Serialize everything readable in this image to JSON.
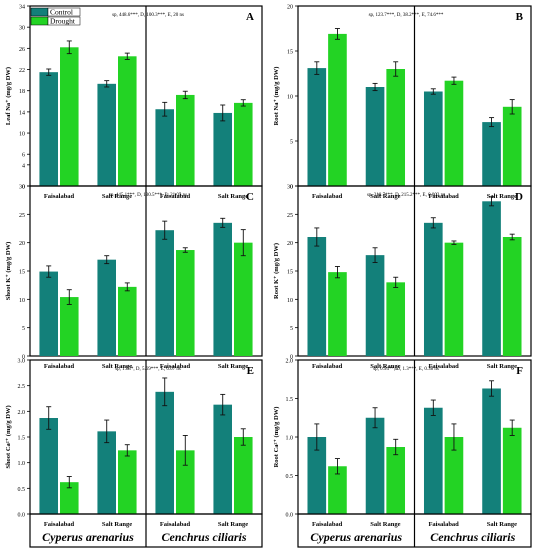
{
  "legend": {
    "items": [
      {
        "name": "Control",
        "color": "#13807a"
      },
      {
        "name": "Drought",
        "color": "#23d324"
      }
    ]
  },
  "species_labels": [
    "Cyperus arenarius",
    "Cenchrus ciliaris"
  ],
  "categories": [
    "Faisalabad",
    "Salt Range",
    "Faisalabad",
    "Salt Range"
  ],
  "chart_data": [
    {
      "type": "bar",
      "panel": "A",
      "stats": "sp, 448.6***, D, 100.3***, E, 20 ns",
      "ylabel": "Leaf Na⁺ (mg/g DW)",
      "ylim": [
        0,
        34
      ],
      "yticks": [
        0,
        4,
        6,
        10,
        14,
        18,
        22,
        26,
        30,
        34
      ],
      "categories": [
        "Faisalabad",
        "Salt Range",
        "Faisalabad",
        "Salt Range"
      ],
      "series": [
        {
          "name": "Control",
          "values": [
            21.5,
            19.3,
            14.5,
            13.8
          ],
          "errors": [
            0.6,
            0.6,
            1.3,
            1.5
          ]
        },
        {
          "name": "Drought",
          "values": [
            26.2,
            24.5,
            17.2,
            15.7
          ],
          "errors": [
            1.2,
            0.6,
            0.7,
            0.6
          ]
        }
      ]
    },
    {
      "type": "bar",
      "panel": "B",
      "stats": "sp, 123.7***, D, 38.2***, E, 74.6***",
      "ylabel": "Root Na⁺ (mg/g DW)",
      "ylim": [
        0,
        20
      ],
      "yticks": [
        0,
        5,
        10,
        15,
        20
      ],
      "categories": [
        "Faisalabad",
        "Salt Range",
        "Faisalabad",
        "Salt Range"
      ],
      "series": [
        {
          "name": "Control",
          "values": [
            13.1,
            11.0,
            10.5,
            7.1
          ],
          "errors": [
            0.7,
            0.4,
            0.3,
            0.5
          ]
        },
        {
          "name": "Drought",
          "values": [
            16.9,
            13.0,
            11.7,
            8.8
          ],
          "errors": [
            0.6,
            0.8,
            0.4,
            0.8
          ]
        }
      ]
    },
    {
      "type": "bar",
      "panel": "C",
      "stats": "sp, 445.1***, D, 130.5***, E, 21.05 ns",
      "ylabel": "Shoot K⁺ (mg/g DW)",
      "ylim": [
        0,
        30
      ],
      "yticks": [
        0,
        5,
        10,
        15,
        20,
        25,
        30
      ],
      "categories": [
        "Faisalabad",
        "Salt Range",
        "Faisalabad",
        "Salt Range"
      ],
      "series": [
        {
          "name": "Control",
          "values": [
            14.9,
            17.0,
            22.2,
            23.5
          ],
          "errors": [
            1.0,
            0.7,
            1.6,
            0.8
          ]
        },
        {
          "name": "Drought",
          "values": [
            10.4,
            12.2,
            18.7,
            20.0
          ],
          "errors": [
            1.3,
            0.7,
            0.4,
            2.3
          ]
        }
      ]
    },
    {
      "type": "bar",
      "panel": "D",
      "stats": "sp, 318.7***, D, 215.2***, E, 0.003 ns",
      "ylabel": "Root K⁺ (mg/g DW)",
      "ylim": [
        0,
        30
      ],
      "yticks": [
        0,
        5,
        10,
        15,
        20,
        25,
        30
      ],
      "categories": [
        "Faisalabad",
        "Salt Range",
        "Faisalabad",
        "Salt Range"
      ],
      "series": [
        {
          "name": "Control",
          "values": [
            21.0,
            17.8,
            23.5,
            27.3
          ],
          "errors": [
            1.6,
            1.3,
            0.9,
            0.8
          ]
        },
        {
          "name": "Drought",
          "values": [
            14.8,
            13.0,
            20.0,
            21.0
          ],
          "errors": [
            1.0,
            0.9,
            0.3,
            0.5
          ]
        }
      ]
    },
    {
      "type": "bar",
      "panel": "E",
      "stats": "sp, 1.75*, D, 5.69***, E, 0.07 ns",
      "ylabel": "Shoot Ca²⁺ (mg/g DW)",
      "ylim": [
        0,
        3.0
      ],
      "yticks": [
        0.0,
        0.5,
        1.0,
        1.5,
        2.0,
        2.5,
        3.0
      ],
      "categories": [
        "Faisalabad",
        "Salt Range",
        "Faisalabad",
        "Salt Range"
      ],
      "series": [
        {
          "name": "Control",
          "values": [
            1.87,
            1.61,
            2.38,
            2.13
          ],
          "errors": [
            0.22,
            0.22,
            0.27,
            0.2
          ]
        },
        {
          "name": "Drought",
          "values": [
            0.62,
            1.24,
            1.24,
            1.5
          ],
          "errors": [
            0.11,
            0.11,
            0.29,
            0.16
          ]
        }
      ]
    },
    {
      "type": "bar",
      "panel": "F",
      "stats": "sp, 0.94**, D, 1.3***, E, 0.38 ns",
      "ylabel": "Root Ca²⁺ (mg/g DW)",
      "ylim": [
        0,
        2.0
      ],
      "yticks": [
        0.0,
        0.5,
        1.0,
        1.5,
        2.0
      ],
      "categories": [
        "Faisalabad",
        "Salt Range",
        "Faisalabad",
        "Salt Range"
      ],
      "series": [
        {
          "name": "Control",
          "values": [
            1.0,
            1.25,
            1.38,
            1.63
          ],
          "errors": [
            0.17,
            0.13,
            0.1,
            0.1
          ]
        },
        {
          "name": "Drought",
          "values": [
            0.62,
            0.87,
            1.0,
            1.12
          ],
          "errors": [
            0.1,
            0.1,
            0.17,
            0.1
          ]
        }
      ]
    }
  ]
}
